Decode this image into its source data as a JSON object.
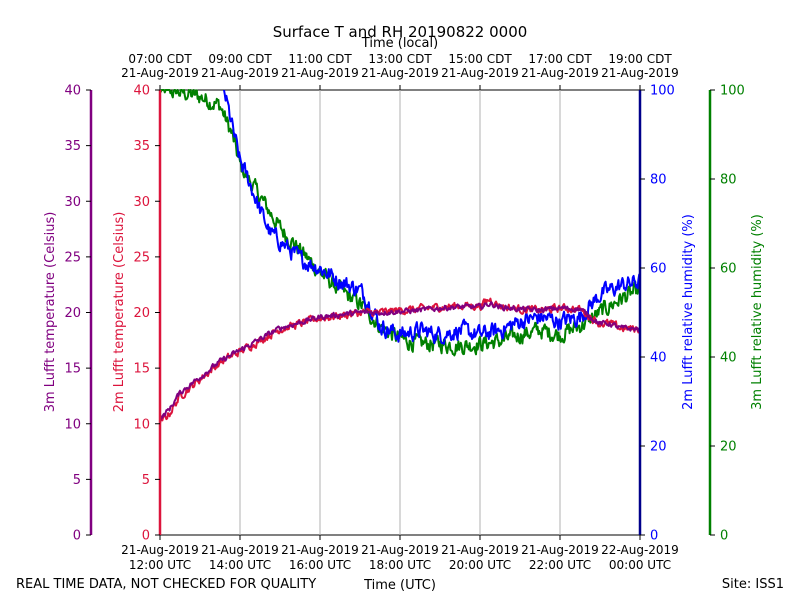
{
  "chart_data": {
    "type": "line",
    "title": "Surface T and RH 20190822 0000",
    "top_axis_label": "Time (local)",
    "xlabel": "Time (UTC)",
    "footer_left": "REAL TIME DATA, NOT CHECKED FOR QUALITY",
    "footer_right": "Site: ISS1",
    "x_range_hours_utc": [
      12,
      24
    ],
    "bottom_ticks": [
      {
        "t": 12,
        "line1": "21-Aug-2019",
        "line2": "12:00 UTC"
      },
      {
        "t": 14,
        "line1": "21-Aug-2019",
        "line2": "14:00 UTC"
      },
      {
        "t": 16,
        "line1": "21-Aug-2019",
        "line2": "16:00 UTC"
      },
      {
        "t": 18,
        "line1": "21-Aug-2019",
        "line2": "18:00 UTC"
      },
      {
        "t": 20,
        "line1": "21-Aug-2019",
        "line2": "20:00 UTC"
      },
      {
        "t": 22,
        "line1": "21-Aug-2019",
        "line2": "22:00 UTC"
      },
      {
        "t": 24,
        "line1": "22-Aug-2019",
        "line2": "00:00 UTC"
      }
    ],
    "top_ticks": [
      {
        "t": 12,
        "line1": "07:00 CDT",
        "line2": "21-Aug-2019"
      },
      {
        "t": 14,
        "line1": "09:00 CDT",
        "line2": "21-Aug-2019"
      },
      {
        "t": 16,
        "line1": "11:00 CDT",
        "line2": "21-Aug-2019"
      },
      {
        "t": 18,
        "line1": "13:00 CDT",
        "line2": "21-Aug-2019"
      },
      {
        "t": 20,
        "line1": "15:00 CDT",
        "line2": "21-Aug-2019"
      },
      {
        "t": 22,
        "line1": "17:00 CDT",
        "line2": "21-Aug-2019"
      },
      {
        "t": 24,
        "line1": "19:00 CDT",
        "line2": "21-Aug-2019"
      }
    ],
    "axes": {
      "temp3m": {
        "label": "3m Lufft temperature (Celsius)",
        "range": [
          0,
          40
        ],
        "ticks": [
          0,
          5,
          10,
          15,
          20,
          25,
          30,
          35,
          40
        ],
        "color": "#800080"
      },
      "temp2m": {
        "label": "2m Lufft temperature (Celsius)",
        "range": [
          0,
          40
        ],
        "ticks": [
          0,
          5,
          10,
          15,
          20,
          25,
          30,
          35,
          40
        ],
        "color": "#dc143c"
      },
      "rh2m": {
        "label": "2m Lufft relative humidity (%)",
        "range": [
          0,
          100
        ],
        "ticks": [
          0,
          20,
          40,
          60,
          80,
          100
        ],
        "color": "#0000ff"
      },
      "rh3m": {
        "label": "3m Lufft relative humidity (%)",
        "range": [
          0,
          100
        ],
        "ticks": [
          0,
          20,
          40,
          60,
          80,
          100
        ],
        "color": "#008000"
      }
    },
    "series": [
      {
        "name": "2m Lufft temperature",
        "axis": "temp2m",
        "color": "#dc143c",
        "x": [
          12.0,
          12.25,
          12.5,
          13.0,
          13.5,
          14.0,
          14.5,
          15.0,
          15.5,
          16.0,
          16.5,
          17.0,
          17.5,
          18.0,
          18.5,
          19.0,
          19.5,
          20.0,
          20.25,
          20.5,
          21.0,
          21.5,
          22.0,
          22.5,
          23.0,
          23.25,
          23.5,
          24.0
        ],
        "y": [
          10.0,
          11.0,
          12.5,
          14.0,
          15.5,
          16.5,
          17.5,
          18.5,
          19.0,
          19.5,
          19.7,
          20.0,
          20.0,
          20.2,
          20.3,
          20.5,
          20.6,
          20.6,
          21.2,
          20.6,
          20.3,
          20.2,
          20.4,
          20.3,
          19.0,
          19.0,
          18.6,
          18.5
        ],
        "noise": 0.3
      },
      {
        "name": "3m Lufft temperature",
        "axis": "temp3m",
        "color": "#800080",
        "x": [
          12.0,
          12.25,
          12.5,
          13.0,
          13.5,
          14.0,
          14.5,
          15.0,
          15.5,
          16.0,
          16.5,
          17.0,
          17.5,
          18.0,
          18.5,
          19.0,
          19.5,
          20.0,
          20.25,
          20.5,
          21.0,
          21.5,
          22.0,
          22.5,
          23.0,
          23.25,
          23.5,
          24.0
        ],
        "y": [
          10.4,
          11.4,
          12.8,
          14.2,
          15.6,
          16.6,
          17.6,
          18.6,
          19.1,
          19.6,
          19.8,
          20.0,
          20.0,
          20.1,
          20.2,
          20.4,
          20.5,
          20.5,
          20.8,
          20.5,
          20.3,
          20.2,
          20.4,
          20.3,
          19.0,
          19.0,
          18.6,
          18.5
        ],
        "noise": 0.2
      },
      {
        "name": "2m Lufft relative humidity",
        "axis": "rh2m",
        "color": "#0000ff",
        "x": [
          13.6,
          13.8,
          14.0,
          14.25,
          14.5,
          14.75,
          15.0,
          15.5,
          16.0,
          16.5,
          17.0,
          17.25,
          17.5,
          18.0,
          18.5,
          19.0,
          19.5,
          20.0,
          20.5,
          21.0,
          21.5,
          22.0,
          22.5,
          23.0,
          23.5,
          24.0
        ],
        "y": [
          100.0,
          92.0,
          84.0,
          79.0,
          73.0,
          68.0,
          66.0,
          62.0,
          60.0,
          57.0,
          55.0,
          52.0,
          47.0,
          45.0,
          46.0,
          45.0,
          46.0,
          45.0,
          46.0,
          48.0,
          49.0,
          48.0,
          49.0,
          54.0,
          56.0,
          57.0
        ],
        "noise": 1.6
      },
      {
        "name": "3m Lufft relative humidity",
        "axis": "rh3m",
        "color": "#008000",
        "x": [
          12.0,
          12.5,
          13.0,
          13.5,
          13.8,
          14.0,
          14.5,
          15.0,
          15.5,
          16.0,
          16.5,
          17.0,
          17.5,
          18.0,
          18.5,
          19.0,
          19.5,
          20.0,
          20.5,
          21.0,
          21.5,
          22.0,
          22.5,
          23.0,
          23.5,
          24.0
        ],
        "y": [
          100.0,
          99.5,
          98.5,
          96.5,
          90.0,
          83.0,
          76.0,
          69.0,
          64.0,
          59.0,
          55.0,
          52.0,
          47.0,
          44.0,
          43.0,
          43.0,
          42.5,
          43.0,
          43.5,
          45.0,
          46.0,
          45.0,
          47.0,
          50.0,
          53.0,
          55.0
        ],
        "noise": 1.6
      }
    ],
    "grid": "vertical"
  }
}
